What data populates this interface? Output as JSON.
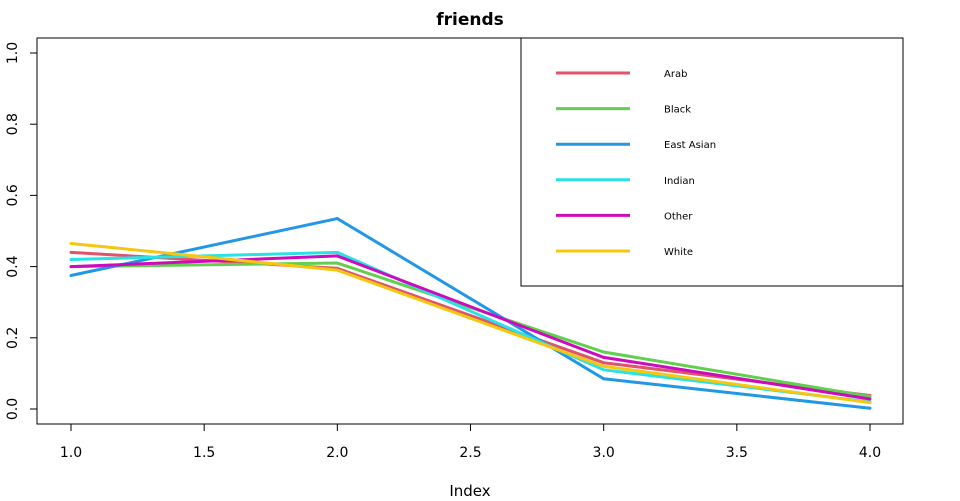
{
  "chart_data": {
    "type": "line",
    "title": "friends",
    "xlabel": "Index",
    "ylabel": "",
    "x": [
      1,
      2,
      3,
      4
    ],
    "xlim": [
      1,
      4
    ],
    "ylim": [
      0,
      1
    ],
    "x_ticks": [
      "1.0",
      "1.5",
      "2.0",
      "2.5",
      "3.0",
      "3.5",
      "4.0"
    ],
    "x_tick_values": [
      1.0,
      1.5,
      2.0,
      2.5,
      3.0,
      3.5,
      4.0
    ],
    "y_ticks": [
      "0.0",
      "0.2",
      "0.4",
      "0.6",
      "0.8",
      "1.0"
    ],
    "y_tick_values": [
      0.0,
      0.2,
      0.4,
      0.6,
      0.8,
      1.0
    ],
    "grid": false,
    "legend_position": "top-right",
    "series": [
      {
        "name": "Arab",
        "color": "#DF536B",
        "values": [
          0.44,
          0.395,
          0.13,
          0.038
        ]
      },
      {
        "name": "Black",
        "color": "#61D04F",
        "values": [
          0.4,
          0.41,
          0.16,
          0.035
        ]
      },
      {
        "name": "East Asian",
        "color": "#2297E6",
        "values": [
          0.375,
          0.535,
          0.085,
          0.002
        ]
      },
      {
        "name": "Indian",
        "color": "#28E2E5",
        "values": [
          0.42,
          0.44,
          0.11,
          0.02
        ]
      },
      {
        "name": "Other",
        "color": "#CD0BBC",
        "values": [
          0.4,
          0.43,
          0.145,
          0.028
        ]
      },
      {
        "name": "White",
        "color": "#F5C710",
        "values": [
          0.465,
          0.39,
          0.12,
          0.018
        ]
      }
    ]
  }
}
